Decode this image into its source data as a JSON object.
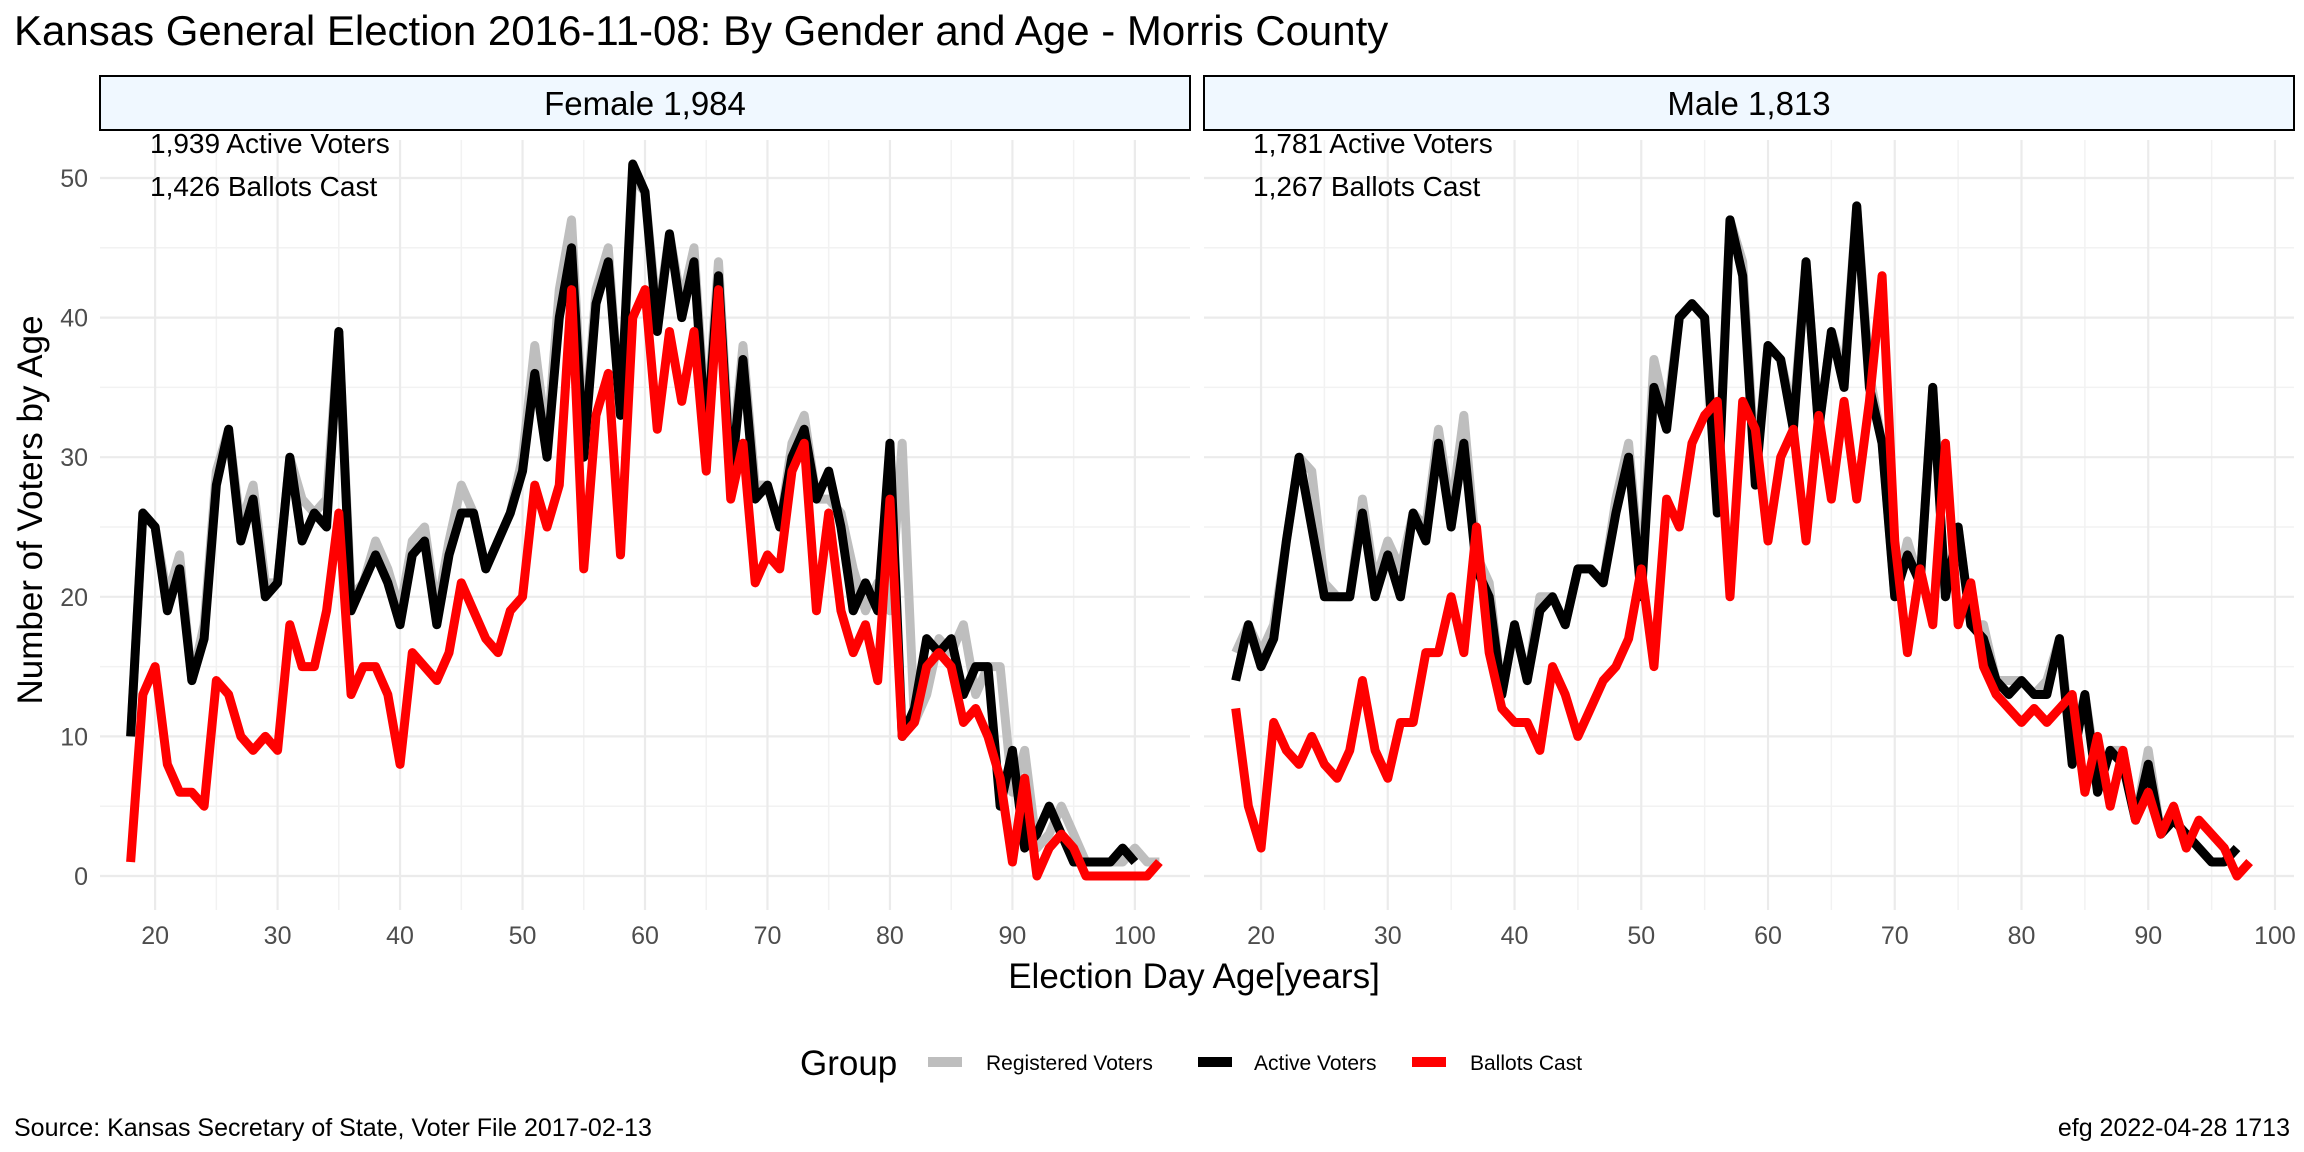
{
  "chart_data": {
    "type": "line",
    "title": "Kansas General Election 2016-11-08:  By Gender and Age - Morris County",
    "xlabel": "Election Day Age[years]",
    "ylabel": "Number of Voters by Age",
    "ylim": [
      0,
      50
    ],
    "y_ticks": [
      0,
      10,
      20,
      30,
      40,
      50
    ],
    "x_ticks": [
      20,
      30,
      40,
      50,
      60,
      70,
      80,
      90,
      100
    ],
    "grid": true,
    "legend": {
      "title": "Group",
      "position": "bottom",
      "entries": [
        {
          "label": "Registered Voters",
          "color": "#bebebe"
        },
        {
          "label": "Active Voters",
          "color": "#000000"
        },
        {
          "label": "Ballots Cast",
          "color": "#ff0000"
        }
      ]
    },
    "caption_left": "Source:  Kansas Secretary of State, Voter File  2017-02-13",
    "caption_right": "efg 2022-04-28 1713",
    "panels": [
      {
        "strip_label": "Female 1,984",
        "annotations": [
          "1,939 Active Voters",
          "1,426 Ballots Cast"
        ],
        "xlim": [
          15.5,
          104.5
        ],
        "series": [
          {
            "name": "Registered Voters",
            "x_start": 18,
            "values": [
              10,
              26,
              25,
              20,
              23,
              14,
              18,
              29,
              32,
              25,
              28,
              21,
              21,
              30,
              27,
              26,
              27,
              39,
              20,
              21,
              24,
              22,
              19,
              24,
              25,
              19,
              24,
              28,
              26,
              22,
              24,
              26,
              30,
              38,
              31,
              42,
              47,
              31,
              42,
              45,
              33,
              50,
              49,
              40,
              46,
              41,
              45,
              32,
              44,
              29,
              38,
              28,
              28,
              25,
              31,
              33,
              27,
              27,
              26,
              22,
              19,
              21,
              19,
              31,
              11,
              13,
              17,
              16,
              18,
              13,
              15,
              15,
              6,
              9,
              2,
              3,
              5,
              3,
              1,
              1,
              1,
              1,
              2,
              1,
              1
            ]
          },
          {
            "name": "Active Voters",
            "x_start": 18,
            "values": [
              10,
              26,
              25,
              19,
              22,
              14,
              17,
              28,
              32,
              24,
              27,
              20,
              21,
              30,
              24,
              26,
              25,
              39,
              19,
              21,
              23,
              21,
              18,
              23,
              24,
              18,
              23,
              26,
              26,
              22,
              24,
              26,
              29,
              36,
              30,
              40,
              45,
              30,
              41,
              44,
              33,
              51,
              49,
              39,
              46,
              40,
              44,
              31,
              43,
              28,
              37,
              27,
              28,
              25,
              30,
              32,
              27,
              29,
              25,
              19,
              21,
              19,
              31,
              10,
              12,
              17,
              16,
              17,
              13,
              15,
              15,
              5,
              9,
              2,
              3,
              5,
              3,
              1,
              1,
              1,
              1,
              2,
              1
            ]
          },
          {
            "name": "Ballots Cast",
            "x_start": 18,
            "values": [
              1,
              13,
              15,
              8,
              6,
              6,
              5,
              14,
              13,
              10,
              9,
              10,
              9,
              18,
              15,
              15,
              19,
              26,
              13,
              15,
              15,
              13,
              8,
              16,
              15,
              14,
              16,
              21,
              19,
              17,
              16,
              19,
              20,
              28,
              25,
              28,
              42,
              22,
              33,
              36,
              23,
              40,
              42,
              32,
              39,
              34,
              39,
              29,
              42,
              27,
              31,
              21,
              23,
              22,
              29,
              31,
              19,
              26,
              19,
              16,
              18,
              14,
              27,
              10,
              11,
              15,
              16,
              15,
              11,
              12,
              10,
              7,
              1,
              7,
              0,
              2,
              3,
              2,
              0,
              0,
              0,
              0,
              0,
              0,
              1
            ]
          }
        ]
      },
      {
        "strip_label": "Male 1,813",
        "annotations": [
          "1,781 Active Voters",
          "1,267 Ballots Cast"
        ],
        "xlim": [
          15.5,
          101.5
        ],
        "series": [
          {
            "name": "Registered Voters",
            "x_start": 18,
            "values": [
              16,
              18,
              16,
              18,
              24,
              30,
              29,
              21,
              20,
              20,
              27,
              21,
              24,
              22,
              26,
              25,
              32,
              26,
              33,
              23,
              21,
              13,
              18,
              14,
              20,
              20,
              18,
              22,
              22,
              21,
              27,
              31,
              21,
              37,
              33,
              40,
              41,
              40,
              27,
              47,
              44,
              29,
              38,
              37,
              33,
              44,
              32,
              39,
              36,
              48,
              36,
              31,
              20,
              24,
              21,
              35,
              20,
              25,
              18,
              18,
              14,
              14,
              14,
              13,
              14,
              17,
              9,
              13,
              7,
              9,
              9,
              4,
              9,
              3,
              4,
              3,
              2,
              1,
              1,
              2
            ]
          },
          {
            "name": "Active Voters",
            "x_start": 18,
            "values": [
              14,
              18,
              15,
              17,
              24,
              30,
              25,
              20,
              20,
              20,
              26,
              20,
              23,
              20,
              26,
              24,
              31,
              25,
              31,
              22,
              20,
              13,
              18,
              14,
              19,
              20,
              18,
              22,
              22,
              21,
              26,
              30,
              20,
              35,
              32,
              40,
              41,
              40,
              26,
              47,
              43,
              28,
              38,
              37,
              32,
              44,
              32,
              39,
              35,
              48,
              35,
              31,
              20,
              23,
              21,
              35,
              20,
              25,
              18,
              17,
              14,
              13,
              14,
              13,
              13,
              17,
              8,
              13,
              6,
              9,
              8,
              4,
              8,
              3,
              4,
              3,
              2,
              1,
              1,
              2
            ]
          },
          {
            "name": "Ballots Cast",
            "x_start": 18,
            "values": [
              12,
              5,
              2,
              11,
              9,
              8,
              10,
              8,
              7,
              9,
              14,
              9,
              7,
              11,
              11,
              16,
              16,
              20,
              16,
              25,
              16,
              12,
              11,
              11,
              9,
              15,
              13,
              10,
              12,
              14,
              15,
              17,
              22,
              15,
              27,
              25,
              31,
              33,
              34,
              20,
              34,
              32,
              24,
              30,
              32,
              24,
              33,
              27,
              34,
              27,
              34,
              43,
              24,
              16,
              22,
              18,
              31,
              18,
              21,
              15,
              13,
              12,
              11,
              12,
              11,
              12,
              13,
              6,
              10,
              5,
              9,
              4,
              6,
              3,
              5,
              2,
              4,
              3,
              2,
              0,
              1
            ]
          }
        ]
      }
    ]
  }
}
